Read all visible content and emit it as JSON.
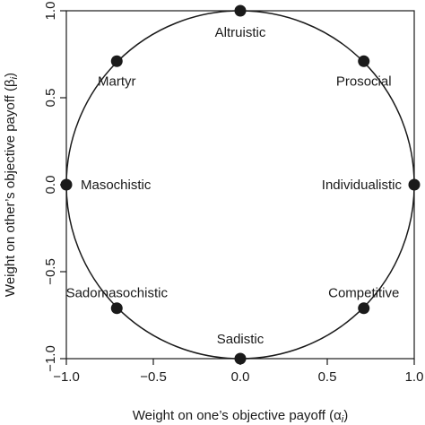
{
  "chart_data": {
    "type": "scatter",
    "xlabel": "Weight on one’s objective payoff (α",
    "xlabel_sub": "i",
    "ylabel": "Weight on other’s objective payoff (β",
    "ylabel_sub": "i",
    "xlim": [
      -1.0,
      1.0
    ],
    "ylim": [
      -1.0,
      1.0
    ],
    "x_ticks": [
      -1.0,
      -0.5,
      0.0,
      0.5,
      1.0
    ],
    "x_tick_labels": [
      "−1.0",
      "−0.5",
      "0.0",
      "0.5",
      "1.0"
    ],
    "y_ticks": [
      -1.0,
      -0.5,
      0.0,
      0.5,
      1.0
    ],
    "y_tick_labels": [
      "−1.0",
      "−0.5",
      "0.0",
      "0.5",
      "1.0"
    ],
    "grid": false,
    "unit_circle": true,
    "points": [
      {
        "label": "Altruistic",
        "x": 0.0,
        "y": 1.0
      },
      {
        "label": "Prosocial",
        "x": 0.71,
        "y": 0.71
      },
      {
        "label": "Individualistic",
        "x": 1.0,
        "y": 0.0
      },
      {
        "label": "Competitive",
        "x": 0.71,
        "y": -0.71
      },
      {
        "label": "Sadistic",
        "x": 0.0,
        "y": -1.0
      },
      {
        "label": "Sadomasochistic",
        "x": -0.71,
        "y": -0.71
      },
      {
        "label": "Masochistic",
        "x": -1.0,
        "y": 0.0
      },
      {
        "label": "Martyr",
        "x": -0.71,
        "y": 0.71
      }
    ]
  }
}
